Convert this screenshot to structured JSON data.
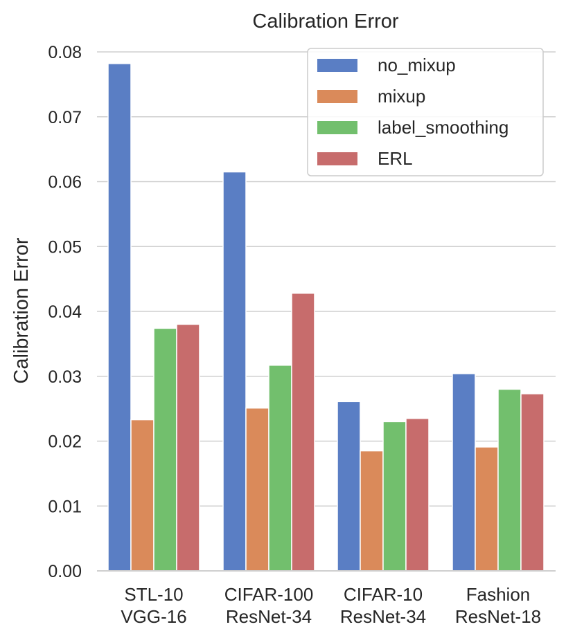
{
  "chart_data": {
    "type": "bar",
    "title": "Calibration Error",
    "xlabel": "",
    "ylabel": "Calibration Error",
    "ylim": [
      0,
      0.08
    ],
    "yticks": [
      "0.00",
      "0.01",
      "0.02",
      "0.03",
      "0.04",
      "0.05",
      "0.06",
      "0.07",
      "0.08"
    ],
    "grid": true,
    "legend_position": "top-right",
    "categories": [
      [
        "STL-10",
        "VGG-16"
      ],
      [
        "CIFAR-100",
        "ResNet-34"
      ],
      [
        "CIFAR-10",
        "ResNet-34"
      ],
      [
        "Fashion",
        "ResNet-18"
      ]
    ],
    "series": [
      {
        "name": "no_mixup",
        "color": "#5a7ec4",
        "values": [
          0.0782,
          0.0615,
          0.0261,
          0.0304
        ]
      },
      {
        "name": "mixup",
        "color": "#da8a5a",
        "values": [
          0.0233,
          0.0251,
          0.0185,
          0.0191
        ]
      },
      {
        "name": "label_smoothing",
        "color": "#72bf6d",
        "values": [
          0.0374,
          0.0317,
          0.023,
          0.028
        ]
      },
      {
        "name": "ERL",
        "color": "#c76c6c",
        "values": [
          0.038,
          0.0428,
          0.0235,
          0.0273
        ]
      }
    ]
  }
}
